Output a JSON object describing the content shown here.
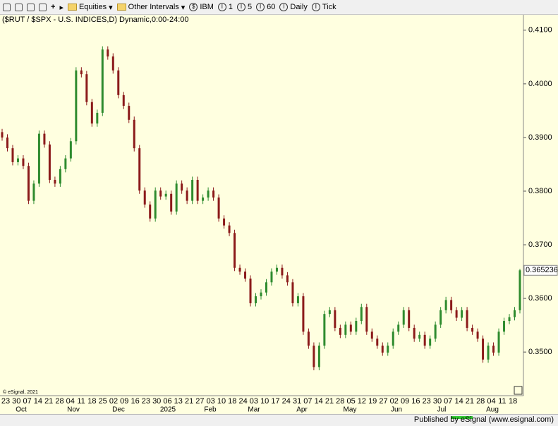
{
  "toolbar": {
    "items": [
      "Equities",
      "Other Intervals",
      "IBM",
      "1",
      "5",
      "60",
      "Daily",
      "Tick"
    ]
  },
  "chart_data": {
    "type": "candlestick",
    "title": "($RUT / $SPX - U.S. INDICES,D) Dynamic,0:00-24:00",
    "copyright": "© eSignal, 2021",
    "up_color": "#2e8b2e",
    "down_color": "#8b1a1a",
    "ylim": [
      0.342,
      0.413
    ],
    "yticks": [
      {
        "value": 0.41,
        "label": "0.4100"
      },
      {
        "value": 0.4,
        "label": "0.4000"
      },
      {
        "value": 0.39,
        "label": "0.3900"
      },
      {
        "value": 0.38,
        "label": "0.3800"
      },
      {
        "value": 0.37,
        "label": "0.3700"
      },
      {
        "value": 0.36,
        "label": "0.3600"
      },
      {
        "value": 0.35,
        "label": "0.3500"
      }
    ],
    "last_price": 0.365236,
    "x_labels": [
      "23",
      "30",
      "07",
      "14",
      "21",
      "28",
      "04",
      "11",
      "18",
      "25",
      "02",
      "09",
      "16",
      "23",
      "30",
      "06",
      "13",
      "21",
      "27",
      "03",
      "10",
      "18",
      "24",
      "03",
      "10",
      "17",
      "24",
      "31",
      "07",
      "14",
      "21",
      "28",
      "05",
      "12",
      "19",
      "27",
      "02",
      "09",
      "16",
      "23",
      "30",
      "07",
      "14",
      "21",
      "28",
      "04",
      "11",
      "18"
    ],
    "month_labels": [
      "Oct",
      "Nov",
      "Dec",
      "2025",
      "Feb",
      "Mar",
      "Apr",
      "May",
      "Jun",
      "Jul",
      "Aug"
    ],
    "open": [
      0.391,
      0.39,
      0.388,
      0.3854,
      0.3861,
      0.3847,
      0.3782,
      0.3814,
      0.3907,
      0.3887,
      0.3821,
      0.3814,
      0.3841,
      0.3861,
      0.3893,
      0.4025,
      0.4018,
      0.3966,
      0.3926,
      0.3946,
      0.4064,
      0.4051,
      0.4025,
      0.3979,
      0.3959,
      0.3933,
      0.388,
      0.3801,
      0.3775,
      0.3749,
      0.3801,
      0.379,
      0.3795,
      0.3762,
      0.3814,
      0.3801,
      0.3782,
      0.3821,
      0.3782,
      0.3788,
      0.3801,
      0.3788,
      0.3749,
      0.3736,
      0.3722,
      0.3657,
      0.365,
      0.3637,
      0.3591,
      0.3604,
      0.3611,
      0.363,
      0.365,
      0.3657,
      0.3643,
      0.363,
      0.3591,
      0.3604,
      0.3538,
      0.3512,
      0.3472,
      0.3512,
      0.3571,
      0.3578,
      0.3545,
      0.3532,
      0.3551,
      0.3538,
      0.3558,
      0.3584,
      0.3538,
      0.3525,
      0.3512,
      0.3499,
      0.3512,
      0.3538,
      0.3551,
      0.3578,
      0.3545,
      0.3525,
      0.3532,
      0.3512,
      0.3525,
      0.3551,
      0.3578,
      0.3597,
      0.3578,
      0.3564,
      0.3578,
      0.3545,
      0.3538,
      0.3525,
      0.3486,
      0.3512,
      0.3499,
      0.3538,
      0.3558,
      0.3565,
      0.3578
    ],
    "high": [
      0.3916,
      0.3906,
      0.3886,
      0.3867,
      0.3867,
      0.3853,
      0.382,
      0.3913,
      0.3913,
      0.3893,
      0.3827,
      0.3847,
      0.3867,
      0.3899,
      0.4031,
      0.4031,
      0.4024,
      0.3972,
      0.3952,
      0.407,
      0.407,
      0.4057,
      0.4031,
      0.3985,
      0.3965,
      0.3939,
      0.3886,
      0.3807,
      0.3781,
      0.3807,
      0.3807,
      0.3801,
      0.3801,
      0.382,
      0.382,
      0.3807,
      0.3827,
      0.3827,
      0.3794,
      0.3807,
      0.3807,
      0.3794,
      0.3755,
      0.3742,
      0.3728,
      0.3663,
      0.3656,
      0.3643,
      0.361,
      0.3617,
      0.3636,
      0.3656,
      0.3663,
      0.3663,
      0.3649,
      0.3636,
      0.361,
      0.361,
      0.3544,
      0.3518,
      0.3518,
      0.3577,
      0.3584,
      0.3584,
      0.3551,
      0.3557,
      0.3557,
      0.3564,
      0.359,
      0.359,
      0.3544,
      0.3531,
      0.3518,
      0.3518,
      0.3544,
      0.3557,
      0.3584,
      0.3584,
      0.3551,
      0.3538,
      0.3538,
      0.3531,
      0.3557,
      0.3584,
      0.3603,
      0.3603,
      0.3584,
      0.3584,
      0.3584,
      0.3551,
      0.3544,
      0.3531,
      0.3518,
      0.3518,
      0.3544,
      0.3564,
      0.3571,
      0.3584,
      0.3655
    ],
    "low": [
      0.3894,
      0.3874,
      0.3848,
      0.3848,
      0.3841,
      0.3776,
      0.3776,
      0.3808,
      0.3881,
      0.3815,
      0.3808,
      0.3808,
      0.3835,
      0.3855,
      0.3887,
      0.4012,
      0.396,
      0.392,
      0.392,
      0.394,
      0.4045,
      0.4019,
      0.3973,
      0.3953,
      0.3927,
      0.3874,
      0.3795,
      0.3769,
      0.3743,
      0.3743,
      0.3784,
      0.3784,
      0.3756,
      0.3756,
      0.3795,
      0.3776,
      0.3776,
      0.3776,
      0.3776,
      0.3782,
      0.3782,
      0.3743,
      0.373,
      0.3716,
      0.3651,
      0.3644,
      0.3631,
      0.3585,
      0.3585,
      0.3598,
      0.3605,
      0.3624,
      0.3644,
      0.3637,
      0.3624,
      0.3585,
      0.3585,
      0.3532,
      0.3506,
      0.3466,
      0.3466,
      0.3506,
      0.3565,
      0.3539,
      0.3526,
      0.3526,
      0.3532,
      0.3532,
      0.3552,
      0.3532,
      0.3519,
      0.3506,
      0.3493,
      0.3493,
      0.3506,
      0.3532,
      0.3545,
      0.3539,
      0.3519,
      0.3519,
      0.3506,
      0.3506,
      0.3519,
      0.3545,
      0.3572,
      0.3572,
      0.3558,
      0.3558,
      0.3539,
      0.3532,
      0.3519,
      0.348,
      0.348,
      0.3493,
      0.3493,
      0.3532,
      0.3552,
      0.3559,
      0.3572
    ],
    "close": [
      0.39,
      0.388,
      0.3854,
      0.3861,
      0.3847,
      0.3782,
      0.3814,
      0.3907,
      0.3887,
      0.3821,
      0.3814,
      0.3841,
      0.3861,
      0.3893,
      0.4025,
      0.4018,
      0.3966,
      0.3926,
      0.3946,
      0.4064,
      0.4051,
      0.4025,
      0.3979,
      0.3959,
      0.3933,
      0.388,
      0.3801,
      0.3775,
      0.3749,
      0.3801,
      0.379,
      0.3795,
      0.3762,
      0.3814,
      0.3801,
      0.3782,
      0.3821,
      0.3782,
      0.3788,
      0.3801,
      0.3788,
      0.3749,
      0.3736,
      0.3722,
      0.3657,
      0.365,
      0.3637,
      0.3591,
      0.3604,
      0.3611,
      0.363,
      0.365,
      0.3657,
      0.3643,
      0.363,
      0.3591,
      0.3604,
      0.3538,
      0.3512,
      0.3472,
      0.3512,
      0.3571,
      0.3578,
      0.3545,
      0.3532,
      0.3551,
      0.3538,
      0.3558,
      0.3584,
      0.3538,
      0.3525,
      0.3512,
      0.3499,
      0.3512,
      0.3538,
      0.3551,
      0.3578,
      0.3545,
      0.3525,
      0.3532,
      0.3512,
      0.3525,
      0.3551,
      0.3578,
      0.3597,
      0.3578,
      0.3564,
      0.3578,
      0.3545,
      0.3538,
      0.3525,
      0.3486,
      0.3512,
      0.3499,
      0.3538,
      0.3558,
      0.3565,
      0.3578,
      0.365236
    ]
  },
  "status": "Published by eSignal (www.esignal.com)"
}
